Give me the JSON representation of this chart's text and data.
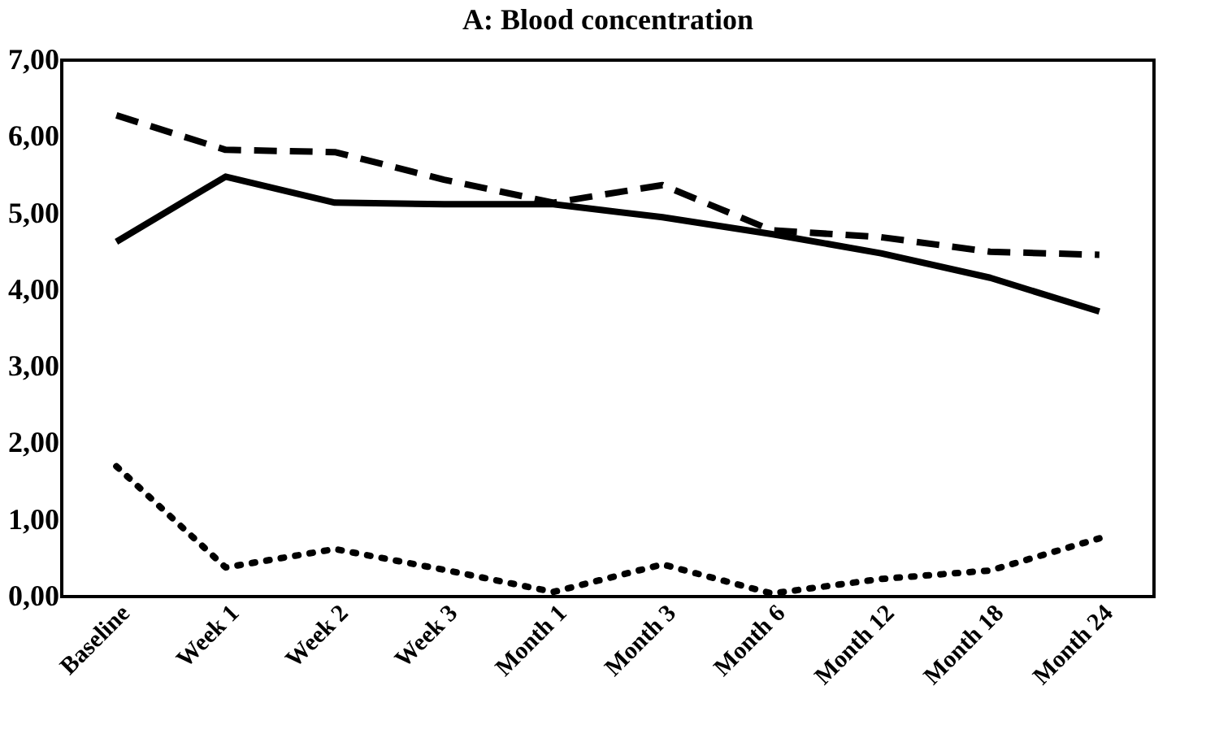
{
  "chart_data": {
    "type": "line",
    "title": "A: Blood concentration",
    "categories": [
      "Baseline",
      "Week 1",
      "Week 2",
      "Week 3",
      "Month 1",
      "Month 3",
      "Month 6",
      "Month 12",
      "Month 18",
      "Month 24"
    ],
    "series": [
      {
        "color": "#000000",
        "line_style": "solid",
        "values": [
          4.63,
          5.48,
          5.14,
          5.12,
          5.12,
          4.95,
          4.73,
          4.48,
          4.16,
          3.72
        ]
      },
      {
        "color": "#000000",
        "line_style": "dashed",
        "values": [
          6.28,
          5.83,
          5.8,
          5.44,
          5.14,
          5.37,
          4.78,
          4.69,
          4.5,
          4.46
        ]
      },
      {
        "color": "#000000",
        "line_style": "dotted",
        "values": [
          1.7,
          0.38,
          0.62,
          0.35,
          0.06,
          0.42,
          0.04,
          0.23,
          0.34,
          0.76
        ]
      }
    ],
    "ylim": [
      0,
      7
    ],
    "yticks": [
      {
        "value": 0,
        "label": "0,00"
      },
      {
        "value": 1,
        "label": "1,00"
      },
      {
        "value": 2,
        "label": "2,00"
      },
      {
        "value": 3,
        "label": "3,00"
      },
      {
        "value": 4,
        "label": "4,00"
      },
      {
        "value": 5,
        "label": "5,00"
      },
      {
        "value": 6,
        "label": "6,00"
      },
      {
        "value": 7,
        "label": "7,00"
      }
    ],
    "grid": false,
    "marker": "none"
  }
}
